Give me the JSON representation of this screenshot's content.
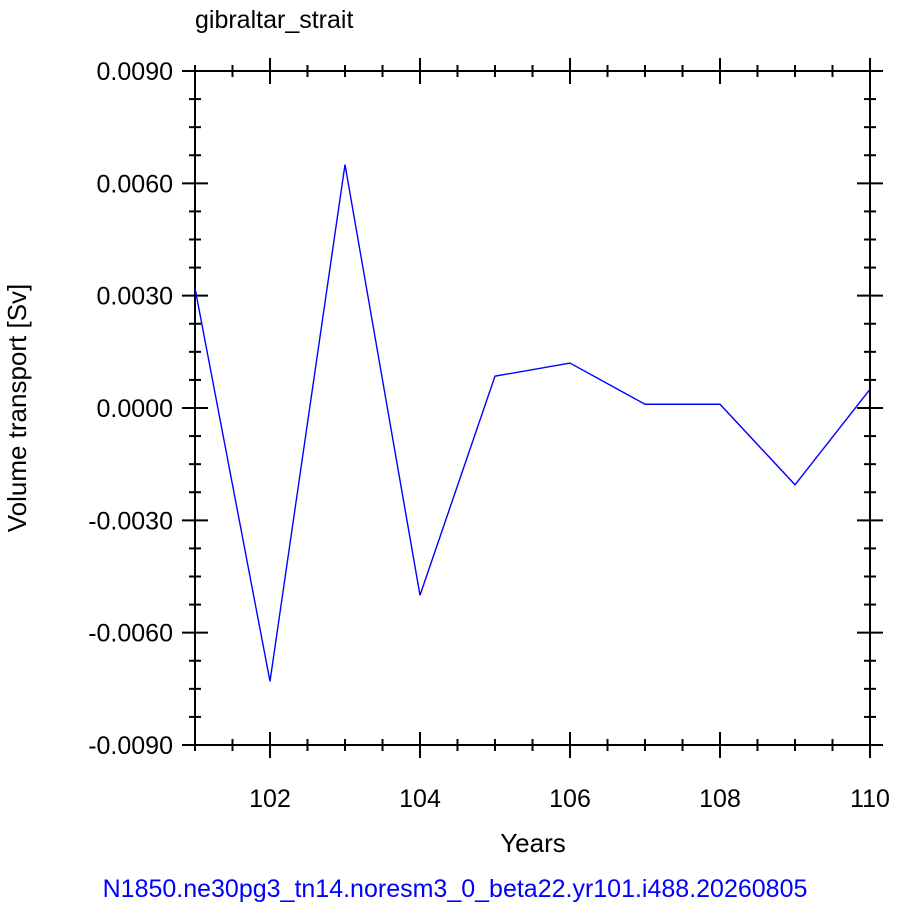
{
  "chart_data": {
    "type": "line",
    "title": "gibraltar_strait",
    "xlabel": "Years",
    "ylabel": "Volume transport [Sv]",
    "xlim": [
      101,
      110
    ],
    "ylim": [
      -0.009,
      0.009
    ],
    "x_ticks": [
      {
        "value": 102,
        "label": "102"
      },
      {
        "value": 104,
        "label": "104"
      },
      {
        "value": 106,
        "label": "106"
      },
      {
        "value": 108,
        "label": "108"
      },
      {
        "value": 110,
        "label": "110"
      }
    ],
    "y_ticks": [
      {
        "value": 0.009,
        "label": "0.0090"
      },
      {
        "value": 0.006,
        "label": "0.0060"
      },
      {
        "value": 0.003,
        "label": "0.0030"
      },
      {
        "value": 0.0,
        "label": "0.0000"
      },
      {
        "value": -0.003,
        "label": "-0.0030"
      },
      {
        "value": -0.006,
        "label": "-0.0060"
      },
      {
        "value": -0.009,
        "label": "-0.0090"
      }
    ],
    "grid": false,
    "series": [
      {
        "color": "#0000ff",
        "x": [
          101,
          102,
          103,
          104,
          105,
          106,
          107,
          108,
          109,
          110
        ],
        "y": [
          0.0032,
          -0.0073,
          0.0065,
          -0.005,
          0.00085,
          0.0012,
          0.0001,
          0.0001,
          -0.00205,
          0.0005
        ]
      }
    ]
  },
  "footer": {
    "text": "N1850.ne30pg3_tn14.noresm3_0_beta22.yr101.i488.20260805",
    "color": "#0000ff"
  }
}
